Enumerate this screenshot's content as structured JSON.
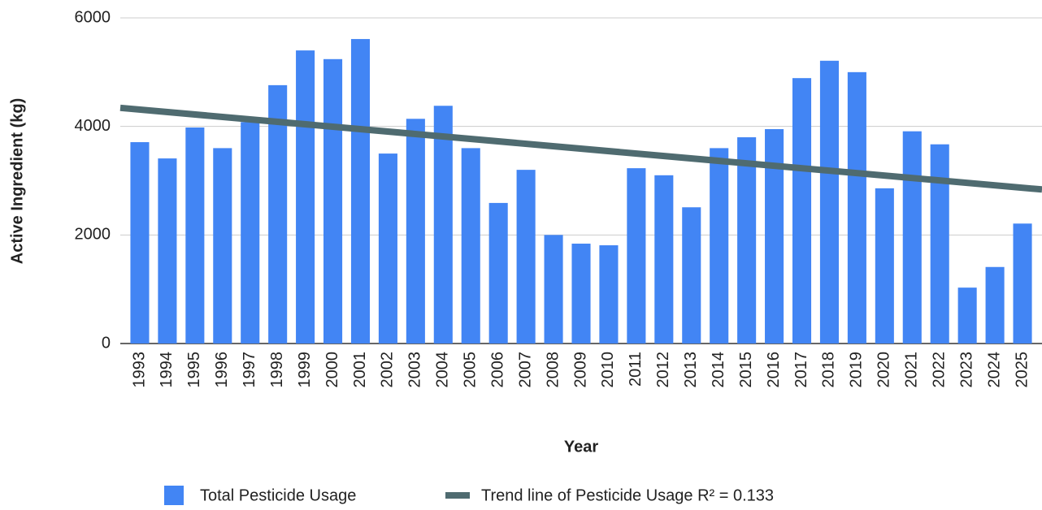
{
  "chart_data": {
    "type": "bar",
    "y_label": "Active Ingredient (kg)",
    "x_label": "Year",
    "categories": [
      "1993",
      "1994",
      "1995",
      "1996",
      "1997",
      "1998",
      "1999",
      "2000",
      "2001",
      "2002",
      "2003",
      "2004",
      "2005",
      "2006",
      "2007",
      "2008",
      "2009",
      "2010",
      "2011",
      "2012",
      "2013",
      "2014",
      "2015",
      "2016",
      "2017",
      "2018",
      "2019",
      "2020",
      "2021",
      "2022",
      "2023",
      "2024",
      "2025"
    ],
    "series": [
      {
        "name": "Total Pesticide Usage",
        "color": "#4285f4",
        "values": [
          3710,
          3410,
          3980,
          3600,
          4080,
          4760,
          5400,
          5240,
          5610,
          3500,
          4140,
          4380,
          3600,
          2590,
          3200,
          2000,
          1840,
          1810,
          3230,
          3100,
          2510,
          3600,
          3800,
          3950,
          4890,
          5210,
          5000,
          2860,
          3910,
          3670,
          1030,
          1410,
          2210
        ]
      }
    ],
    "trend": {
      "name": "Trend line of Pesticide Usage R² = 0.133",
      "color": "#4f6b70",
      "x": [
        "1993",
        "2025"
      ],
      "values": [
        4310,
        2870
      ]
    },
    "ylim": [
      0,
      6000
    ],
    "yticks": [
      0,
      2000,
      4000,
      6000
    ],
    "grid": true
  }
}
